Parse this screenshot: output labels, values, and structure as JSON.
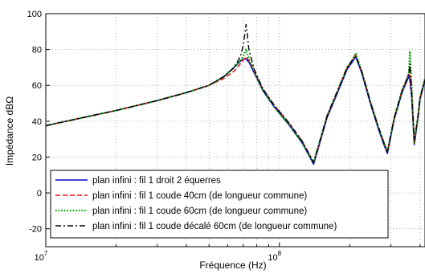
{
  "chart_data": {
    "type": "line",
    "xlabel": "Fréquence (Hz)",
    "ylabel": "Impédance dBΩ",
    "x_scale": "log",
    "xlim": [
      10000000,
      420000000
    ],
    "ylim": [
      -30,
      100
    ],
    "x_ticks": [
      {
        "value": 10000000,
        "base": "10",
        "exp": "7"
      },
      {
        "value": 100000000,
        "base": "10",
        "exp": "8"
      }
    ],
    "y_ticks": [
      -20,
      0,
      20,
      40,
      60,
      80,
      100
    ],
    "grid": true,
    "legend_position": "bottom-left",
    "series": [
      {
        "name": "plan infini : fil 1 droit 2 équerres",
        "color": "#0000cc",
        "style": "solid",
        "x": [
          10000000,
          15000000,
          20000000,
          30000000,
          40000000,
          50000000,
          58000000,
          64000000,
          68000000,
          70000000,
          71500000,
          74000000,
          78000000,
          85000000,
          95000000,
          110000000,
          125000000,
          135000000,
          140000000,
          146000000,
          160000000,
          180000000,
          195000000,
          205000000,
          212000000,
          225000000,
          245000000,
          265000000,
          280000000,
          290000000,
          310000000,
          335000000,
          350000000,
          358000000,
          362000000,
          368000000,
          378000000,
          392000000,
          400000000,
          420000000
        ],
        "y": [
          37.5,
          42.5,
          46,
          51.5,
          56,
          60,
          65,
          70,
          73.5,
          74.5,
          75,
          73,
          67,
          57,
          48,
          38,
          28,
          20,
          16,
          24,
          42,
          58,
          69,
          73,
          76,
          67,
          50,
          36,
          27,
          22,
          41,
          56,
          62,
          65,
          63,
          54,
          27,
          42,
          52,
          63
        ]
      },
      {
        "name": "plan infini : fil 1 coude 40cm (de longueur commune)",
        "color": "#ee1111",
        "style": "dashed",
        "x": [
          10000000,
          15000000,
          20000000,
          30000000,
          40000000,
          50000000,
          58000000,
          64000000,
          68000000,
          70000000,
          72000000,
          74000000,
          78000000,
          85000000,
          95000000,
          110000000,
          125000000,
          135000000,
          140000000,
          146000000,
          160000000,
          180000000,
          195000000,
          205000000,
          212000000,
          225000000,
          245000000,
          265000000,
          280000000,
          290000000,
          310000000,
          335000000,
          350000000,
          358000000,
          362000000,
          368000000,
          378000000,
          392000000,
          400000000,
          420000000
        ],
        "y": [
          37.5,
          42.5,
          46,
          51.5,
          56,
          60,
          64,
          68,
          72,
          74,
          76,
          74,
          68,
          58,
          49,
          39,
          29,
          21,
          17,
          25,
          43,
          59,
          70,
          74,
          77,
          68,
          51,
          37,
          28,
          23,
          42,
          57,
          63,
          67,
          65,
          56,
          27,
          43,
          53,
          64
        ]
      },
      {
        "name": "plan infini : fil 1 coude 60cm (de longueur commune)",
        "color": "#00a000",
        "style": "dotted",
        "x": [
          10000000,
          15000000,
          20000000,
          30000000,
          40000000,
          50000000,
          58000000,
          64000000,
          68000000,
          70000000,
          72000000,
          74000000,
          78000000,
          85000000,
          95000000,
          110000000,
          125000000,
          135000000,
          140000000,
          146000000,
          160000000,
          180000000,
          195000000,
          205000000,
          212000000,
          225000000,
          245000000,
          265000000,
          280000000,
          290000000,
          310000000,
          335000000,
          350000000,
          358000000,
          362000000,
          368000000,
          378000000,
          392000000,
          400000000,
          420000000
        ],
        "y": [
          37.5,
          42.5,
          46,
          51.5,
          56,
          60,
          65,
          70,
          74,
          76,
          80,
          75,
          68,
          57,
          48,
          38,
          28,
          20,
          17,
          25,
          43,
          59,
          70,
          74,
          78,
          68,
          51,
          37,
          28,
          23,
          42,
          57,
          63,
          66,
          79,
          60,
          28,
          43,
          53,
          64
        ]
      },
      {
        "name": "plan infini : fil 1 coude décalé 60cm (de longueur commune)",
        "color": "#000000",
        "style": "dashdot",
        "x": [
          10000000,
          15000000,
          20000000,
          30000000,
          40000000,
          50000000,
          58000000,
          64000000,
          68000000,
          70000000,
          72000000,
          74000000,
          78000000,
          85000000,
          95000000,
          110000000,
          125000000,
          135000000,
          140000000,
          146000000,
          160000000,
          180000000,
          195000000,
          205000000,
          212000000,
          225000000,
          245000000,
          265000000,
          280000000,
          290000000,
          310000000,
          335000000,
          350000000,
          358000000,
          362000000,
          368000000,
          378000000,
          392000000,
          400000000,
          420000000
        ],
        "y": [
          37.5,
          42.5,
          46,
          51.5,
          56,
          60,
          65,
          70,
          76,
          82,
          94,
          80,
          69,
          58,
          49,
          39,
          29,
          21,
          17,
          25,
          43,
          59,
          70,
          74,
          76,
          68,
          51,
          37,
          28,
          23,
          42,
          57,
          63,
          66,
          72,
          58,
          29,
          43,
          53,
          63
        ]
      }
    ]
  }
}
